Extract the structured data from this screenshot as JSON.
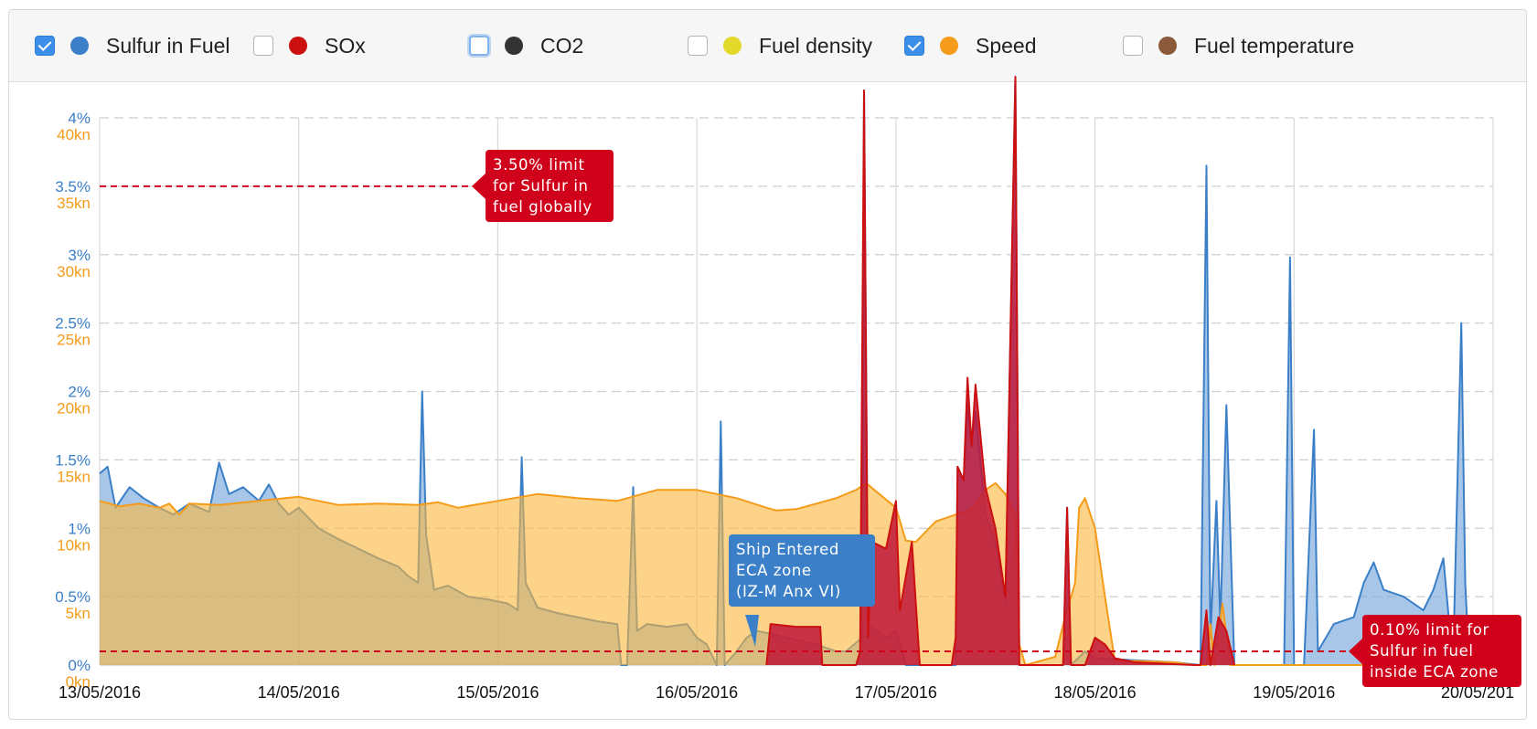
{
  "legend": [
    {
      "label": "Sulfur in Fuel",
      "color": "#3a7fc8",
      "checked": true
    },
    {
      "label": "SOx",
      "color": "#cc1010",
      "checked": false
    },
    {
      "label": "CO2",
      "color": "#333333",
      "checked": false,
      "focused": true
    },
    {
      "label": "Fuel density",
      "color": "#e3d92a",
      "checked": false
    },
    {
      "label": "Speed",
      "color": "#f59b1a",
      "checked": true
    },
    {
      "label": "Fuel temperature",
      "color": "#8a5a3a",
      "checked": false
    }
  ],
  "annotations": {
    "global_limit": {
      "lines": [
        "3.50% limit",
        "for Sulfur in",
        "fuel globally"
      ],
      "value_pct": 3.5,
      "color": "#d0021b"
    },
    "eca_limit": {
      "lines": [
        "0.10% limit for",
        "Sulfur in fuel",
        "inside ECA zone"
      ],
      "value_pct": 0.1,
      "color": "#d0021b"
    },
    "eca_entry": {
      "lines": [
        "Ship Entered",
        "ECA zone",
        "(IZ-M Anx VI)"
      ],
      "date": "16/05/2016 ~10:00",
      "color": "#3a7fc8"
    }
  },
  "chart_data": {
    "type": "area",
    "x_labels": [
      "13/05/2016",
      "14/05/2016",
      "15/05/2016",
      "16/05/2016",
      "17/05/2016",
      "18/05/2016",
      "19/05/2016",
      "20/05/201"
    ],
    "xlim_days": [
      "13/05/2016",
      "20/05/2016"
    ],
    "y_left": {
      "ticks": [
        "0%",
        "0.5%",
        "1%",
        "1.5%",
        "2%",
        "2.5%",
        "3%",
        "3.5%",
        "4%"
      ],
      "range": [
        0,
        4
      ],
      "unit": "%",
      "color": "#3a7fc8"
    },
    "y_right": {
      "ticks": [
        "0kn",
        "5kn",
        "10kn",
        "15kn",
        "20kn",
        "25kn",
        "30kn",
        "35kn",
        "40kn"
      ],
      "range": [
        0,
        40
      ],
      "unit": "kn",
      "color": "#f59b1a"
    },
    "grid": true,
    "series": [
      {
        "name": "Sulfur in Fuel",
        "axis": "left",
        "color": "#3a7fc8",
        "points": [
          [
            0.0,
            1.4
          ],
          [
            0.04,
            1.45
          ],
          [
            0.08,
            1.15
          ],
          [
            0.15,
            1.3
          ],
          [
            0.22,
            1.22
          ],
          [
            0.3,
            1.15
          ],
          [
            0.37,
            1.1
          ],
          [
            0.45,
            1.18
          ],
          [
            0.55,
            1.12
          ],
          [
            0.6,
            1.48
          ],
          [
            0.65,
            1.25
          ],
          [
            0.72,
            1.3
          ],
          [
            0.8,
            1.2
          ],
          [
            0.85,
            1.32
          ],
          [
            0.9,
            1.18
          ],
          [
            0.95,
            1.1
          ],
          [
            1.0,
            1.15
          ],
          [
            1.1,
            1.0
          ],
          [
            1.2,
            0.92
          ],
          [
            1.3,
            0.85
          ],
          [
            1.4,
            0.78
          ],
          [
            1.5,
            0.72
          ],
          [
            1.55,
            0.65
          ],
          [
            1.6,
            0.6
          ],
          [
            1.62,
            2.0
          ],
          [
            1.64,
            0.95
          ],
          [
            1.68,
            0.55
          ],
          [
            1.75,
            0.58
          ],
          [
            1.85,
            0.5
          ],
          [
            1.95,
            0.48
          ],
          [
            2.05,
            0.45
          ],
          [
            2.1,
            0.4
          ],
          [
            2.12,
            1.52
          ],
          [
            2.14,
            0.6
          ],
          [
            2.2,
            0.42
          ],
          [
            2.3,
            0.38
          ],
          [
            2.4,
            0.35
          ],
          [
            2.5,
            0.32
          ],
          [
            2.6,
            0.3
          ],
          [
            2.62,
            0.0
          ],
          [
            2.65,
            0.0
          ],
          [
            2.68,
            1.3
          ],
          [
            2.7,
            0.25
          ],
          [
            2.75,
            0.3
          ],
          [
            2.85,
            0.28
          ],
          [
            2.95,
            0.3
          ],
          [
            3.0,
            0.2
          ],
          [
            3.05,
            0.15
          ],
          [
            3.1,
            0.0
          ],
          [
            3.12,
            1.78
          ],
          [
            3.14,
            0.0
          ],
          [
            3.2,
            0.1
          ],
          [
            3.25,
            0.2
          ],
          [
            3.3,
            0.25
          ],
          [
            3.4,
            0.22
          ],
          [
            3.5,
            0.18
          ],
          [
            3.6,
            0.15
          ],
          [
            3.7,
            0.1
          ],
          [
            3.75,
            0.1
          ],
          [
            3.83,
            0.2
          ],
          [
            3.84,
            4.2
          ],
          [
            3.86,
            0.3
          ],
          [
            3.95,
            0.2
          ],
          [
            4.0,
            0.25
          ],
          [
            4.05,
            0.0
          ],
          [
            4.25,
            0.0
          ],
          [
            4.3,
            0.0
          ],
          [
            4.31,
            1.45
          ],
          [
            4.34,
            1.35
          ],
          [
            4.36,
            1.9
          ],
          [
            4.38,
            1.6
          ],
          [
            4.4,
            1.85
          ],
          [
            4.45,
            1.1
          ],
          [
            4.5,
            0.9
          ],
          [
            4.55,
            0.45
          ],
          [
            4.6,
            4.3
          ],
          [
            4.62,
            0.0
          ],
          [
            4.7,
            0.0
          ],
          [
            4.84,
            0.0
          ],
          [
            4.86,
            1.15
          ],
          [
            4.88,
            0.0
          ],
          [
            4.95,
            0.1
          ],
          [
            5.0,
            0.05
          ],
          [
            5.4,
            0.02
          ],
          [
            5.53,
            0.0
          ],
          [
            5.56,
            3.65
          ],
          [
            5.58,
            0.2
          ],
          [
            5.61,
            1.2
          ],
          [
            5.63,
            0.3
          ],
          [
            5.66,
            1.9
          ],
          [
            5.7,
            0.0
          ],
          [
            5.95,
            0.0
          ],
          [
            5.98,
            2.98
          ],
          [
            6.0,
            0.0
          ],
          [
            6.05,
            0.0
          ],
          [
            6.1,
            1.72
          ],
          [
            6.12,
            0.1
          ],
          [
            6.2,
            0.3
          ],
          [
            6.3,
            0.35
          ],
          [
            6.35,
            0.6
          ],
          [
            6.4,
            0.75
          ],
          [
            6.45,
            0.55
          ],
          [
            6.55,
            0.5
          ],
          [
            6.6,
            0.45
          ],
          [
            6.65,
            0.4
          ],
          [
            6.7,
            0.55
          ],
          [
            6.75,
            0.78
          ],
          [
            6.78,
            0.3
          ],
          [
            6.8,
            0.1
          ],
          [
            6.84,
            2.5
          ],
          [
            6.86,
            0.6
          ],
          [
            6.88,
            0.0
          ]
        ]
      },
      {
        "name": "Speed",
        "axis": "right",
        "color": "#f59b1a",
        "points": [
          [
            0.0,
            12.0
          ],
          [
            0.1,
            11.6
          ],
          [
            0.2,
            11.8
          ],
          [
            0.3,
            11.5
          ],
          [
            0.35,
            11.8
          ],
          [
            0.4,
            11.0
          ],
          [
            0.45,
            11.8
          ],
          [
            0.6,
            11.7
          ],
          [
            0.8,
            12.0
          ],
          [
            1.0,
            12.3
          ],
          [
            1.2,
            11.7
          ],
          [
            1.4,
            11.8
          ],
          [
            1.6,
            11.7
          ],
          [
            1.7,
            11.9
          ],
          [
            1.8,
            11.5
          ],
          [
            2.0,
            12.0
          ],
          [
            2.2,
            12.5
          ],
          [
            2.4,
            12.2
          ],
          [
            2.6,
            12.0
          ],
          [
            2.8,
            12.8
          ],
          [
            3.0,
            12.8
          ],
          [
            3.2,
            12.2
          ],
          [
            3.35,
            11.5
          ],
          [
            3.4,
            11.3
          ],
          [
            3.5,
            11.4
          ],
          [
            3.6,
            11.8
          ],
          [
            3.7,
            12.2
          ],
          [
            3.8,
            12.8
          ],
          [
            3.85,
            13.3
          ],
          [
            4.0,
            11.5
          ],
          [
            4.05,
            9.1
          ],
          [
            4.1,
            9.0
          ],
          [
            4.2,
            10.5
          ],
          [
            4.3,
            11.0
          ],
          [
            4.38,
            11.4
          ],
          [
            4.45,
            12.8
          ],
          [
            4.5,
            13.3
          ],
          [
            4.55,
            12.5
          ],
          [
            4.6,
            11.0
          ],
          [
            4.62,
            1.5
          ],
          [
            4.65,
            0.0
          ],
          [
            4.7,
            0.2
          ],
          [
            4.8,
            0.6
          ],
          [
            4.85,
            3.5
          ],
          [
            4.9,
            6.0
          ],
          [
            4.92,
            11.5
          ],
          [
            4.95,
            12.2
          ],
          [
            5.0,
            10.0
          ],
          [
            5.05,
            5.0
          ],
          [
            5.1,
            0.3
          ],
          [
            5.2,
            0.3
          ],
          [
            5.4,
            0.2
          ],
          [
            5.5,
            0.0
          ],
          [
            5.56,
            0.0
          ],
          [
            5.58,
            3.0
          ],
          [
            5.6,
            0.0
          ],
          [
            5.64,
            4.5
          ],
          [
            5.68,
            0.0
          ],
          [
            5.75,
            0.0
          ],
          [
            6.0,
            0.0
          ],
          [
            7.0,
            0.0
          ]
        ]
      },
      {
        "name": "SOx",
        "axis": "left",
        "color": "#cc1010",
        "points": [
          [
            3.35,
            0.0
          ],
          [
            3.37,
            0.3
          ],
          [
            3.5,
            0.28
          ],
          [
            3.62,
            0.28
          ],
          [
            3.63,
            0.0
          ],
          [
            3.8,
            0.0
          ],
          [
            3.82,
            0.1
          ],
          [
            3.84,
            4.2
          ],
          [
            3.86,
            0.2
          ],
          [
            3.88,
            0.9
          ],
          [
            3.95,
            0.85
          ],
          [
            4.0,
            1.2
          ],
          [
            4.02,
            0.4
          ],
          [
            4.08,
            0.9
          ],
          [
            4.12,
            0.0
          ],
          [
            4.28,
            0.0
          ],
          [
            4.3,
            0.2
          ],
          [
            4.31,
            1.45
          ],
          [
            4.34,
            1.35
          ],
          [
            4.36,
            2.1
          ],
          [
            4.38,
            1.6
          ],
          [
            4.4,
            2.05
          ],
          [
            4.45,
            1.3
          ],
          [
            4.5,
            1.0
          ],
          [
            4.55,
            0.5
          ],
          [
            4.6,
            4.3
          ],
          [
            4.62,
            0.0
          ],
          [
            4.84,
            0.0
          ],
          [
            4.86,
            1.15
          ],
          [
            4.88,
            0.0
          ],
          [
            4.95,
            0.0
          ],
          [
            5.0,
            0.2
          ],
          [
            5.05,
            0.15
          ],
          [
            5.1,
            0.05
          ],
          [
            5.2,
            0.02
          ],
          [
            5.5,
            0.0
          ],
          [
            5.53,
            0.0
          ],
          [
            5.56,
            0.4
          ],
          [
            5.58,
            0.0
          ],
          [
            5.62,
            0.35
          ],
          [
            5.66,
            0.25
          ],
          [
            5.7,
            0.0
          ]
        ]
      }
    ]
  }
}
